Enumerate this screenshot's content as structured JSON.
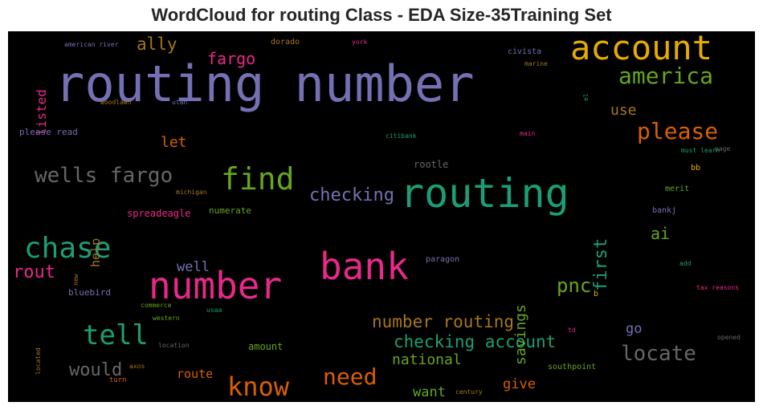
{
  "title": "WordCloud for routing Class - EDA Size-35Training Set",
  "colors": {
    "background": "#000000",
    "purple": "#7570b3",
    "green": "#1b9e77",
    "orange": "#d95f02",
    "pink": "#e7298a",
    "lime": "#66a61e",
    "gold": "#e6ab02",
    "brown": "#a6761d",
    "gray": "#666666"
  },
  "words": [
    "routing number",
    "account",
    "routing",
    "number",
    "bank",
    "find",
    "chase",
    "wells fargo",
    "tell",
    "america",
    "please",
    "know",
    "need",
    "locate",
    "checking account",
    "number routing",
    "checking",
    "first",
    "pnc",
    "ally",
    "fargo",
    "would",
    "rout",
    "savings",
    "ai",
    "let",
    "use",
    "national",
    "want",
    "give",
    "go",
    "listed",
    "route",
    "well",
    "help",
    "spreadeagle",
    "amount",
    "rootle",
    "numerate",
    "paragon",
    "southpoint",
    "merit",
    "bankj",
    "bluebird",
    "please read",
    "civista",
    "dorado",
    "american river",
    "york",
    "woodlawn",
    "utah",
    "marine",
    "el",
    "citibank",
    "main",
    "must learn",
    "page",
    "bb",
    "michigan",
    "commerce",
    "usaa",
    "western",
    "new",
    "located",
    "location",
    "axos",
    "turn",
    "century",
    "td",
    "b",
    "add",
    "tax reasons",
    "opened"
  ]
}
